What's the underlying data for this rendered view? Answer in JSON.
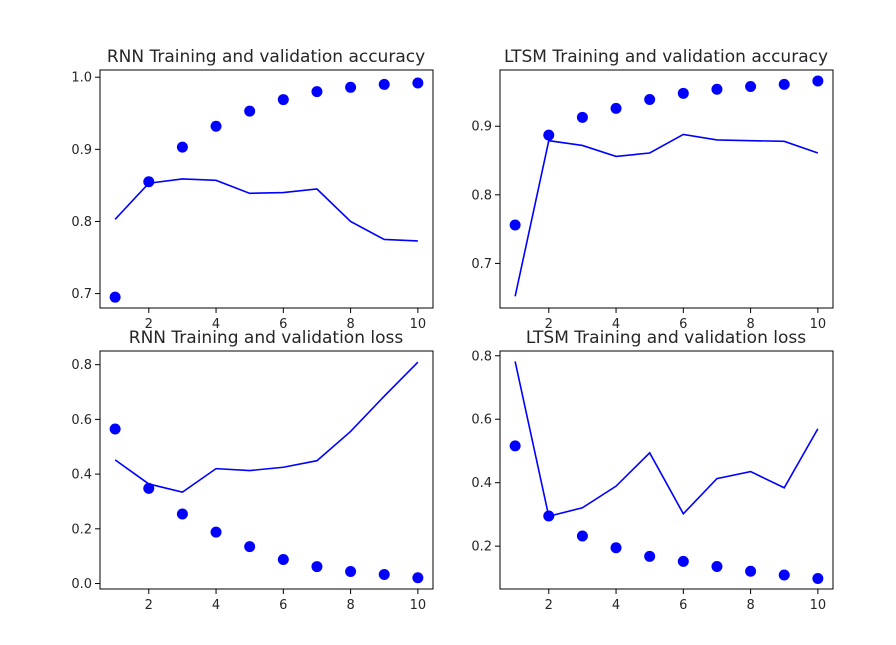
{
  "colors": {
    "series": "#0000ff",
    "axis": "#000000"
  },
  "chart_data": [
    {
      "type": "scatter+line",
      "title": "RNN Training and validation accuracy",
      "x": [
        1,
        2,
        3,
        4,
        5,
        6,
        7,
        8,
        9,
        10
      ],
      "series": [
        {
          "style": "dots",
          "values": [
            0.695,
            0.855,
            0.903,
            0.932,
            0.953,
            0.969,
            0.98,
            0.986,
            0.99,
            0.992
          ]
        },
        {
          "style": "line",
          "values": [
            0.803,
            0.853,
            0.859,
            0.857,
            0.839,
            0.84,
            0.845,
            0.8,
            0.775,
            0.773
          ]
        }
      ],
      "xlim": [
        0.55,
        10.45
      ],
      "ylim": [
        0.68,
        1.01
      ],
      "xticks": [
        2,
        4,
        6,
        8,
        10
      ],
      "yticks": [
        0.7,
        0.8,
        0.9,
        1.0
      ],
      "xtick_labels": [
        "2",
        "4",
        "6",
        "8",
        "10"
      ],
      "ytick_labels": [
        "0.7",
        "0.8",
        "0.9",
        "1.0"
      ],
      "grid": false
    },
    {
      "type": "scatter+line",
      "title": "LTSM Training and validation accuracy",
      "x": [
        1,
        2,
        3,
        4,
        5,
        6,
        7,
        8,
        9,
        10
      ],
      "series": [
        {
          "style": "dots",
          "values": [
            0.756,
            0.887,
            0.913,
            0.926,
            0.939,
            0.948,
            0.954,
            0.958,
            0.961,
            0.966
          ]
        },
        {
          "style": "line",
          "values": [
            0.652,
            0.879,
            0.872,
            0.856,
            0.861,
            0.888,
            0.88,
            0.879,
            0.878,
            0.861
          ]
        }
      ],
      "xlim": [
        0.55,
        10.45
      ],
      "ylim": [
        0.635,
        0.982
      ],
      "xticks": [
        2,
        4,
        6,
        8,
        10
      ],
      "yticks": [
        0.7,
        0.8,
        0.9
      ],
      "xtick_labels": [
        "2",
        "4",
        "6",
        "8",
        "10"
      ],
      "ytick_labels": [
        "0.7",
        "0.8",
        "0.9"
      ],
      "grid": false
    },
    {
      "type": "scatter+line",
      "title": "RNN Training and validation loss",
      "x": [
        1,
        2,
        3,
        4,
        5,
        6,
        7,
        8,
        9,
        10
      ],
      "series": [
        {
          "style": "dots",
          "values": [
            0.565,
            0.348,
            0.254,
            0.188,
            0.135,
            0.088,
            0.062,
            0.044,
            0.033,
            0.021
          ]
        },
        {
          "style": "line",
          "values": [
            0.452,
            0.364,
            0.334,
            0.42,
            0.413,
            0.425,
            0.449,
            0.556,
            0.685,
            0.809
          ]
        }
      ],
      "xlim": [
        0.55,
        10.45
      ],
      "ylim": [
        -0.02,
        0.85
      ],
      "xticks": [
        2,
        4,
        6,
        8,
        10
      ],
      "yticks": [
        0.0,
        0.2,
        0.4,
        0.6,
        0.8
      ],
      "xtick_labels": [
        "2",
        "4",
        "6",
        "8",
        "10"
      ],
      "ytick_labels": [
        "0.0",
        "0.2",
        "0.4",
        "0.6",
        "0.8"
      ],
      "grid": false
    },
    {
      "type": "scatter+line",
      "title": "LTSM Training and validation loss",
      "x": [
        1,
        2,
        3,
        4,
        5,
        6,
        7,
        8,
        9,
        10
      ],
      "series": [
        {
          "style": "dots",
          "values": [
            0.516,
            0.295,
            0.232,
            0.195,
            0.168,
            0.152,
            0.136,
            0.121,
            0.109,
            0.098
          ]
        },
        {
          "style": "line",
          "values": [
            0.782,
            0.294,
            0.321,
            0.389,
            0.494,
            0.302,
            0.413,
            0.435,
            0.384,
            0.57
          ]
        }
      ],
      "xlim": [
        0.55,
        10.45
      ],
      "ylim": [
        0.065,
        0.815
      ],
      "xticks": [
        2,
        4,
        6,
        8,
        10
      ],
      "yticks": [
        0.2,
        0.4,
        0.6,
        0.8
      ],
      "xtick_labels": [
        "2",
        "4",
        "6",
        "8",
        "10"
      ],
      "ytick_labels": [
        "0.2",
        "0.4",
        "0.6",
        "0.8"
      ],
      "grid": false
    }
  ]
}
